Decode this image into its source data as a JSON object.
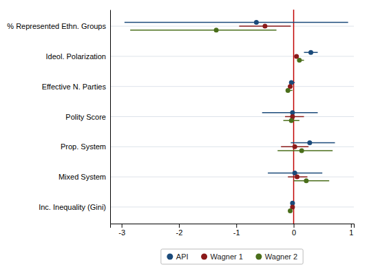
{
  "chart_data": {
    "type": "dot",
    "orientation": "horizontal",
    "categories": [
      "% Represented Ethn. Groups",
      "Ideol. Polarization",
      "Effective N. Parties",
      "Polity Score",
      "Prop. System",
      "Mixed System",
      "Inc. Inequality (Gini)"
    ],
    "series": [
      {
        "name": "API",
        "color": "#1a4a7a",
        "values": [
          -0.65,
          0.3,
          -0.04,
          -0.02,
          0.28,
          0.02,
          -0.02
        ],
        "ci_low": [
          -2.95,
          0.18,
          -0.04,
          -0.55,
          -0.05,
          -0.45,
          -0.02
        ],
        "ci_high": [
          0.95,
          0.42,
          0.02,
          0.42,
          0.72,
          0.5,
          0.02
        ]
      },
      {
        "name": "Wagner 1",
        "color": "#8b1a1a",
        "values": [
          -0.5,
          0.05,
          -0.06,
          -0.02,
          0.02,
          0.06,
          -0.02
        ],
        "ci_low": [
          -0.95,
          0.05,
          -0.06,
          -0.15,
          -0.22,
          -0.1,
          -0.04
        ],
        "ci_high": [
          -0.05,
          0.05,
          -0.06,
          0.18,
          0.26,
          0.24,
          0.0
        ]
      },
      {
        "name": "Wagner 2",
        "color": "#4a6e1a",
        "values": [
          -1.35,
          0.1,
          -0.1,
          -0.04,
          0.14,
          0.22,
          -0.06
        ],
        "ci_low": [
          -2.85,
          0.1,
          -0.1,
          -0.18,
          -0.28,
          0.0,
          -0.06
        ],
        "ci_high": [
          -0.3,
          0.18,
          -0.02,
          0.1,
          0.68,
          0.62,
          -0.02
        ]
      }
    ],
    "xlim": [
      -3.2,
      1.05
    ],
    "xticks": [
      -3,
      -2,
      -1,
      0,
      1
    ],
    "reference_line": {
      "value": 0,
      "color": "#c00000"
    },
    "grid": true,
    "legend": "bottom"
  }
}
